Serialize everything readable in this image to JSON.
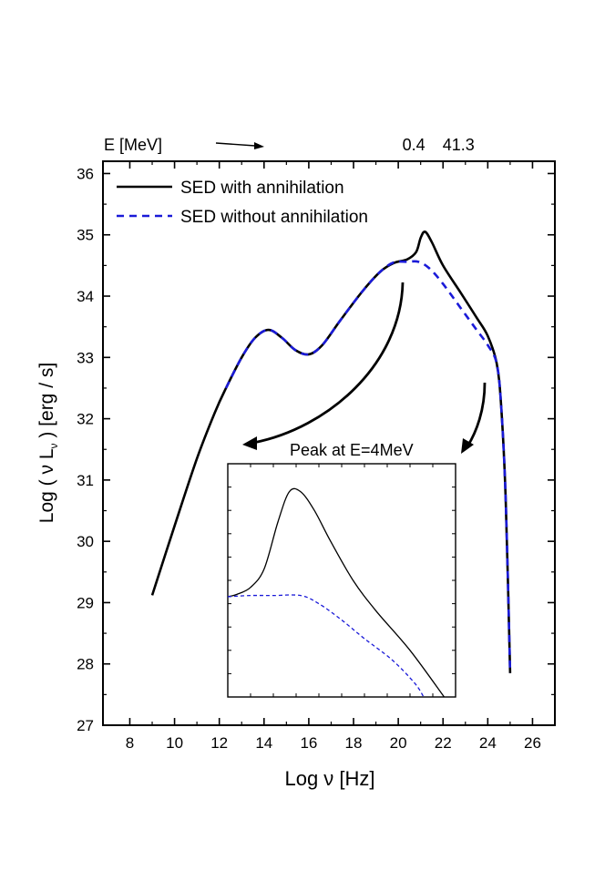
{
  "chart_data": {
    "type": "line",
    "xlabel": "Log ν [Hz]",
    "ylabel": "Log ( ν L",
    "ylabel_sub": "ν",
    "ylabel_unit": " ) [erg / s]",
    "xlim": [
      6.8,
      27.0
    ],
    "ylim": [
      27,
      36.2
    ],
    "xticks": [
      8,
      10,
      12,
      14,
      16,
      18,
      20,
      22,
      24,
      26
    ],
    "yticks": [
      27,
      28,
      29,
      30,
      31,
      32,
      33,
      34,
      35,
      36
    ],
    "top_axis": {
      "label": "E [MeV]",
      "ticks": [
        {
          "label": "0.4",
          "x": 20.0
        },
        {
          "label": "41.3",
          "x": 22.0
        }
      ]
    },
    "legend": {
      "placement": "top-left",
      "entries": [
        "SED with annihilation",
        "SED without annihilation"
      ]
    },
    "series": [
      {
        "name": "SED with annihilation",
        "color": "#000000",
        "style": "solid",
        "points": [
          [
            9.0,
            29.12
          ],
          [
            10.0,
            30.25
          ],
          [
            11.0,
            31.35
          ],
          [
            11.8,
            32.1
          ],
          [
            12.3,
            32.5
          ],
          [
            13.0,
            33.0
          ],
          [
            13.6,
            33.32
          ],
          [
            14.2,
            33.45
          ],
          [
            14.8,
            33.32
          ],
          [
            15.4,
            33.12
          ],
          [
            16.0,
            33.05
          ],
          [
            16.6,
            33.2
          ],
          [
            17.4,
            33.6
          ],
          [
            18.4,
            34.08
          ],
          [
            19.2,
            34.4
          ],
          [
            19.8,
            34.54
          ],
          [
            20.4,
            34.6
          ],
          [
            20.8,
            34.72
          ],
          [
            21.0,
            34.95
          ],
          [
            21.2,
            35.05
          ],
          [
            21.5,
            34.88
          ],
          [
            22.0,
            34.5
          ],
          [
            22.8,
            34.05
          ],
          [
            23.5,
            33.65
          ],
          [
            24.0,
            33.35
          ],
          [
            24.4,
            32.9
          ],
          [
            24.6,
            32.2
          ],
          [
            24.8,
            30.7
          ],
          [
            25.0,
            27.85
          ]
        ]
      },
      {
        "name": "SED without annihilation",
        "color": "#1a1ad8",
        "style": "dashed",
        "points": [
          [
            12.3,
            32.5
          ],
          [
            13.0,
            33.0
          ],
          [
            13.6,
            33.32
          ],
          [
            14.2,
            33.45
          ],
          [
            14.8,
            33.32
          ],
          [
            15.4,
            33.12
          ],
          [
            16.0,
            33.05
          ],
          [
            16.6,
            33.2
          ],
          [
            17.4,
            33.6
          ],
          [
            18.4,
            34.08
          ],
          [
            19.2,
            34.4
          ],
          [
            19.8,
            34.55
          ],
          [
            20.4,
            34.56
          ],
          [
            20.9,
            34.56
          ],
          [
            21.4,
            34.45
          ],
          [
            22.0,
            34.2
          ],
          [
            22.8,
            33.8
          ],
          [
            23.5,
            33.45
          ],
          [
            24.0,
            33.2
          ],
          [
            24.4,
            32.9
          ],
          [
            24.6,
            32.2
          ],
          [
            24.8,
            30.7
          ],
          [
            25.0,
            27.85
          ]
        ]
      }
    ],
    "annotations": [
      {
        "text": "Peak at E=4MeV"
      }
    ],
    "inset": {
      "description": "zoom on annihilation peak",
      "series": [
        {
          "name": "SED with annihilation",
          "color": "#000000",
          "style": "solid",
          "points": [
            [
              0.0,
              0.57
            ],
            [
              0.04,
              0.56
            ],
            [
              0.1,
              0.53
            ],
            [
              0.16,
              0.45
            ],
            [
              0.22,
              0.25
            ],
            [
              0.27,
              0.12
            ],
            [
              0.32,
              0.12
            ],
            [
              0.38,
              0.2
            ],
            [
              0.45,
              0.33
            ],
            [
              0.55,
              0.5
            ],
            [
              0.65,
              0.63
            ],
            [
              0.8,
              0.8
            ],
            [
              0.95,
              1.0
            ]
          ]
        },
        {
          "name": "SED without annihilation",
          "color": "#1a1ad8",
          "style": "dashed",
          "points": [
            [
              0.0,
              0.57
            ],
            [
              0.1,
              0.565
            ],
            [
              0.2,
              0.565
            ],
            [
              0.32,
              0.565
            ],
            [
              0.4,
              0.6
            ],
            [
              0.5,
              0.67
            ],
            [
              0.6,
              0.75
            ],
            [
              0.72,
              0.84
            ],
            [
              0.82,
              0.94
            ],
            [
              0.86,
              1.0
            ]
          ]
        }
      ]
    }
  }
}
